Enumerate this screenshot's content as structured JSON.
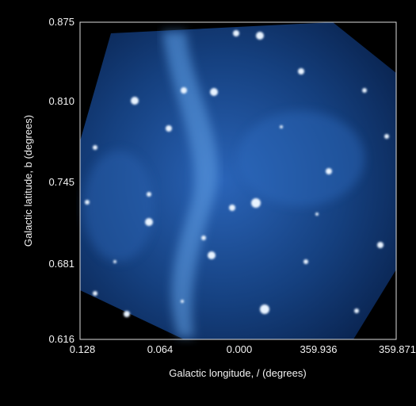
{
  "image": {
    "y_axis_label": "Galactic latitude, b (degrees)",
    "x_axis_label": "Galactic longitude, / (degrees)",
    "y_tick_labels": [
      "0.875",
      "0.810",
      "0.745",
      "0.681",
      "0.616"
    ],
    "x_tick_labels": [
      "0.128",
      "0.064",
      "0.000",
      "359.936",
      "359.871"
    ]
  }
}
